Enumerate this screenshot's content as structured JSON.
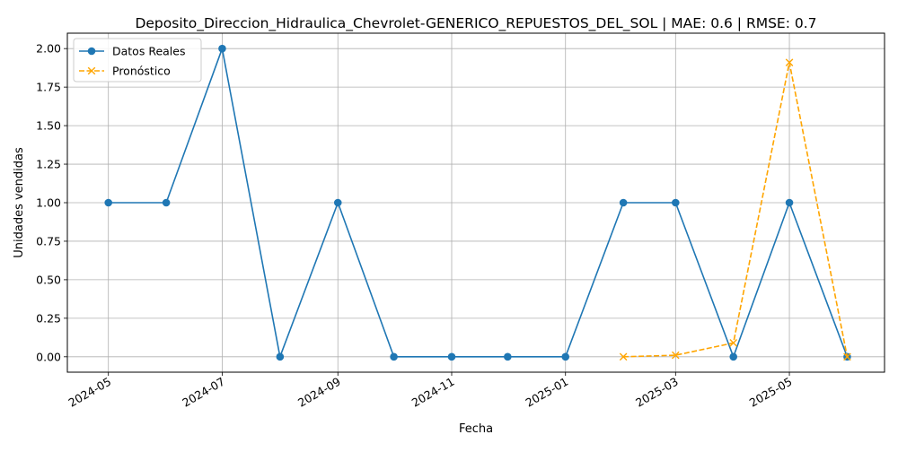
{
  "chart_data": {
    "type": "line",
    "title": "Deposito_Direccion_Hidraulica_Chevrolet-GENERICO_REPUESTOS_DEL_SOL | MAE: 0.6 | RMSE: 0.7",
    "xlabel": "Fecha",
    "ylabel": "Unidades vendidas",
    "x_tick_labels": [
      "2024-05",
      "2024-07",
      "2024-09",
      "2024-11",
      "2025-01",
      "2025-03",
      "2025-05"
    ],
    "y_tick_labels": [
      "0.00",
      "0.25",
      "0.50",
      "0.75",
      "1.00",
      "1.25",
      "1.50",
      "1.75",
      "2.00"
    ],
    "ylim": [
      -0.1,
      2.1
    ],
    "xlim": [
      "2024-04-09",
      "2025-06-21"
    ],
    "grid": true,
    "legend_position": "top-left",
    "series": [
      {
        "name": "Datos Reales",
        "color": "#1f77b4",
        "marker": "circle",
        "linestyle": "solid",
        "x": [
          "2024-05-01",
          "2024-06-01",
          "2024-07-01",
          "2024-08-01",
          "2024-09-01",
          "2024-10-01",
          "2024-11-01",
          "2024-12-01",
          "2025-01-01",
          "2025-02-01",
          "2025-03-01",
          "2025-04-01",
          "2025-05-01",
          "2025-06-01"
        ],
        "values": [
          1,
          1,
          2,
          0,
          1,
          0,
          0,
          0,
          0,
          1,
          1,
          0,
          1,
          0
        ]
      },
      {
        "name": "Pronóstico",
        "color": "#ffa500",
        "marker": "x",
        "linestyle": "dashed",
        "x": [
          "2025-02-01",
          "2025-03-01",
          "2025-04-01",
          "2025-05-01",
          "2025-06-01"
        ],
        "values": [
          0.0,
          0.01,
          0.09,
          1.91,
          0.0
        ]
      }
    ]
  }
}
